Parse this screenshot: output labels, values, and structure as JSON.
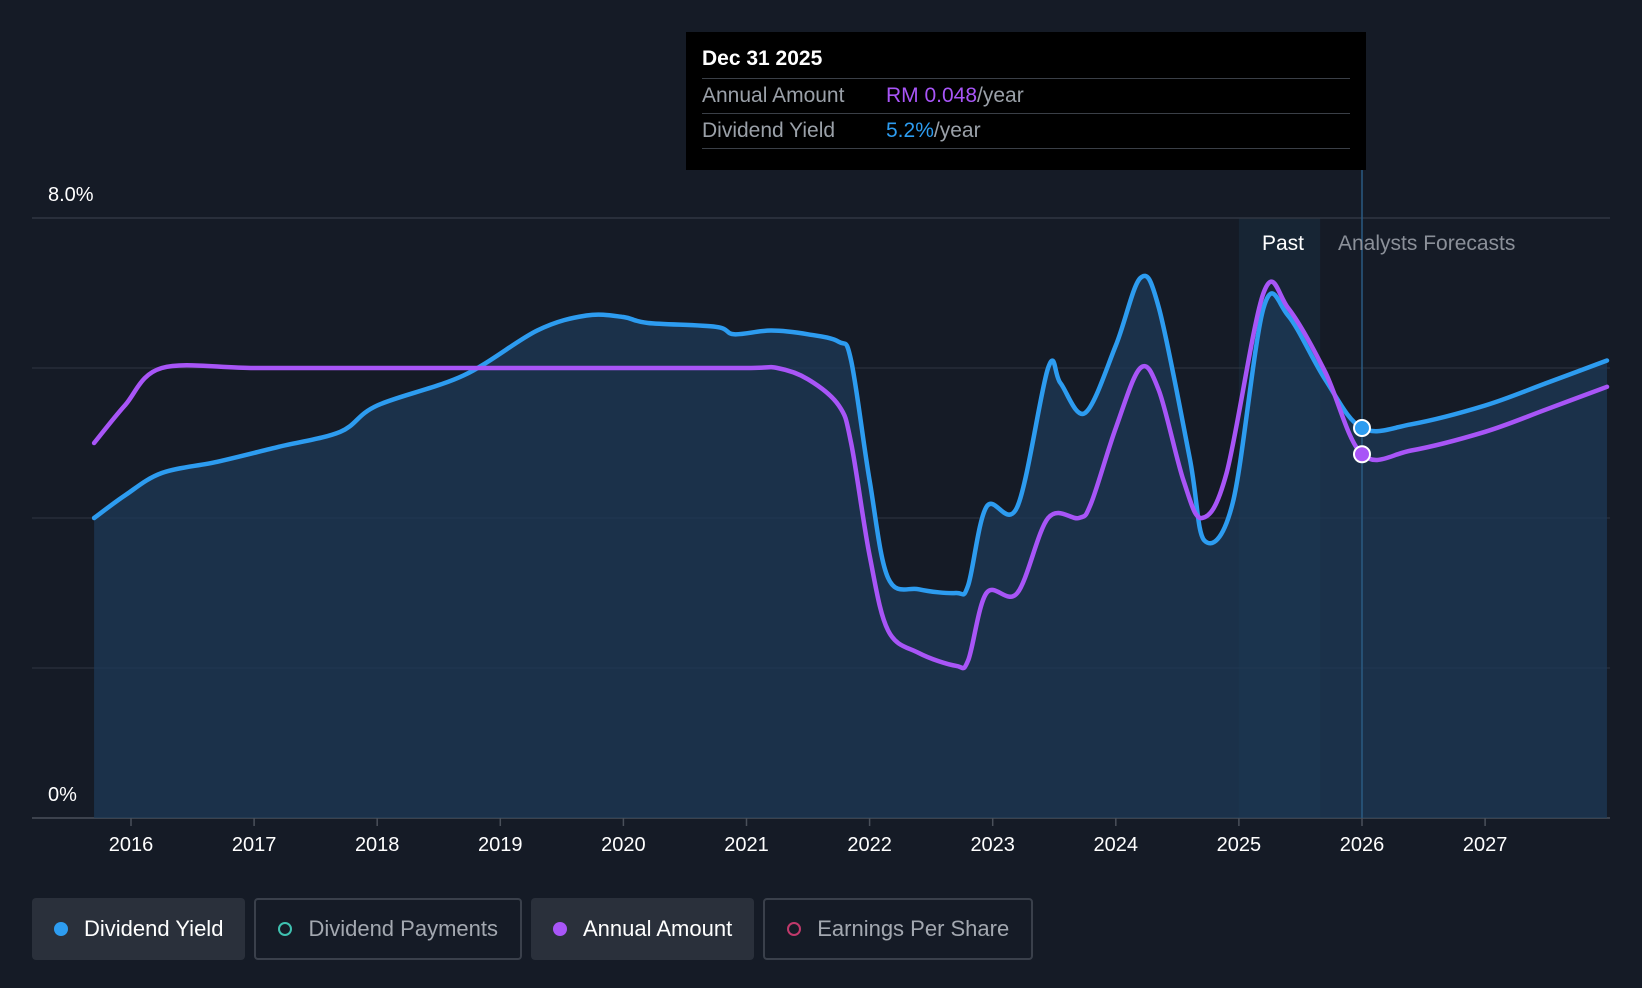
{
  "tooltip": {
    "date": "Dec 31 2025",
    "annual_label": "Annual Amount",
    "annual_value": "RM 0.048",
    "annual_unit": "/year",
    "yield_label": "Dividend Yield",
    "yield_value": "5.2%",
    "yield_unit": "/year"
  },
  "regions": {
    "past": "Past",
    "forecast": "Analysts Forecasts"
  },
  "legend": [
    {
      "label": "Dividend Yield",
      "color": "#2d9cf0",
      "active": true,
      "filled": true
    },
    {
      "label": "Dividend Payments",
      "color": "#3fc1b0",
      "active": false,
      "filled": false
    },
    {
      "label": "Annual Amount",
      "color": "#a855f7",
      "active": true,
      "filled": true
    },
    {
      "label": "Earnings Per Share",
      "color": "#c0396b",
      "active": false,
      "filled": false
    }
  ],
  "chart_data": {
    "type": "line",
    "ylim": [
      0,
      8
    ],
    "y_tick_labels": [
      "8.0%",
      "0%"
    ],
    "x_tick_labels": [
      "2016",
      "2017",
      "2018",
      "2019",
      "2020",
      "2021",
      "2022",
      "2023",
      "2024",
      "2025",
      "2026",
      "2027"
    ],
    "x_range": [
      2015.2,
      2027.99
    ],
    "past_start": 2025.0,
    "forecast_start": 2025.66,
    "marker_x": 2026.0,
    "series": [
      {
        "name": "Dividend Yield",
        "color": "#2d9cf0",
        "points": [
          [
            2015.7,
            4.0
          ],
          [
            2015.95,
            4.3
          ],
          [
            2016.25,
            4.6
          ],
          [
            2016.7,
            4.75
          ],
          [
            2017.2,
            4.95
          ],
          [
            2017.7,
            5.15
          ],
          [
            2018.0,
            5.5
          ],
          [
            2018.7,
            5.9
          ],
          [
            2019.3,
            6.5
          ],
          [
            2019.7,
            6.7
          ],
          [
            2020.0,
            6.68
          ],
          [
            2020.2,
            6.6
          ],
          [
            2020.75,
            6.55
          ],
          [
            2020.9,
            6.45
          ],
          [
            2021.2,
            6.5
          ],
          [
            2021.5,
            6.45
          ],
          [
            2021.75,
            6.35
          ],
          [
            2021.85,
            6.1
          ],
          [
            2022.0,
            4.5
          ],
          [
            2022.15,
            3.2
          ],
          [
            2022.4,
            3.05
          ],
          [
            2022.7,
            3.0
          ],
          [
            2022.8,
            3.1
          ],
          [
            2022.95,
            4.15
          ],
          [
            2023.2,
            4.15
          ],
          [
            2023.45,
            6.0
          ],
          [
            2023.55,
            5.8
          ],
          [
            2023.75,
            5.4
          ],
          [
            2024.0,
            6.3
          ],
          [
            2024.2,
            7.2
          ],
          [
            2024.35,
            6.8
          ],
          [
            2024.6,
            4.8
          ],
          [
            2024.72,
            3.7
          ],
          [
            2024.95,
            4.2
          ],
          [
            2025.2,
            6.8
          ],
          [
            2025.4,
            6.7
          ],
          [
            2025.7,
            5.85
          ],
          [
            2026.0,
            5.2
          ],
          [
            2026.4,
            5.25
          ],
          [
            2027.0,
            5.5
          ],
          [
            2027.5,
            5.8
          ],
          [
            2027.99,
            6.1
          ]
        ]
      },
      {
        "name": "Annual Amount",
        "color": "#a855f7",
        "points": [
          [
            2015.7,
            5.0
          ],
          [
            2015.95,
            5.5
          ],
          [
            2016.25,
            6.0
          ],
          [
            2017.0,
            6.0
          ],
          [
            2018.0,
            6.0
          ],
          [
            2019.0,
            6.0
          ],
          [
            2020.0,
            6.0
          ],
          [
            2021.0,
            6.0
          ],
          [
            2021.25,
            6.0
          ],
          [
            2021.5,
            5.85
          ],
          [
            2021.75,
            5.5
          ],
          [
            2021.85,
            5.0
          ],
          [
            2022.0,
            3.5
          ],
          [
            2022.15,
            2.5
          ],
          [
            2022.4,
            2.2
          ],
          [
            2022.7,
            2.03
          ],
          [
            2022.8,
            2.1
          ],
          [
            2022.95,
            3.0
          ],
          [
            2023.2,
            3.0
          ],
          [
            2023.45,
            4.0
          ],
          [
            2023.7,
            4.0
          ],
          [
            2023.8,
            4.2
          ],
          [
            2024.0,
            5.2
          ],
          [
            2024.2,
            6.0
          ],
          [
            2024.35,
            5.7
          ],
          [
            2024.55,
            4.5
          ],
          [
            2024.7,
            4.0
          ],
          [
            2024.9,
            4.6
          ],
          [
            2025.2,
            7.0
          ],
          [
            2025.4,
            6.8
          ],
          [
            2025.7,
            5.95
          ],
          [
            2026.0,
            4.85
          ],
          [
            2026.4,
            4.9
          ],
          [
            2027.0,
            5.15
          ],
          [
            2027.5,
            5.45
          ],
          [
            2027.99,
            5.75
          ]
        ]
      }
    ]
  }
}
